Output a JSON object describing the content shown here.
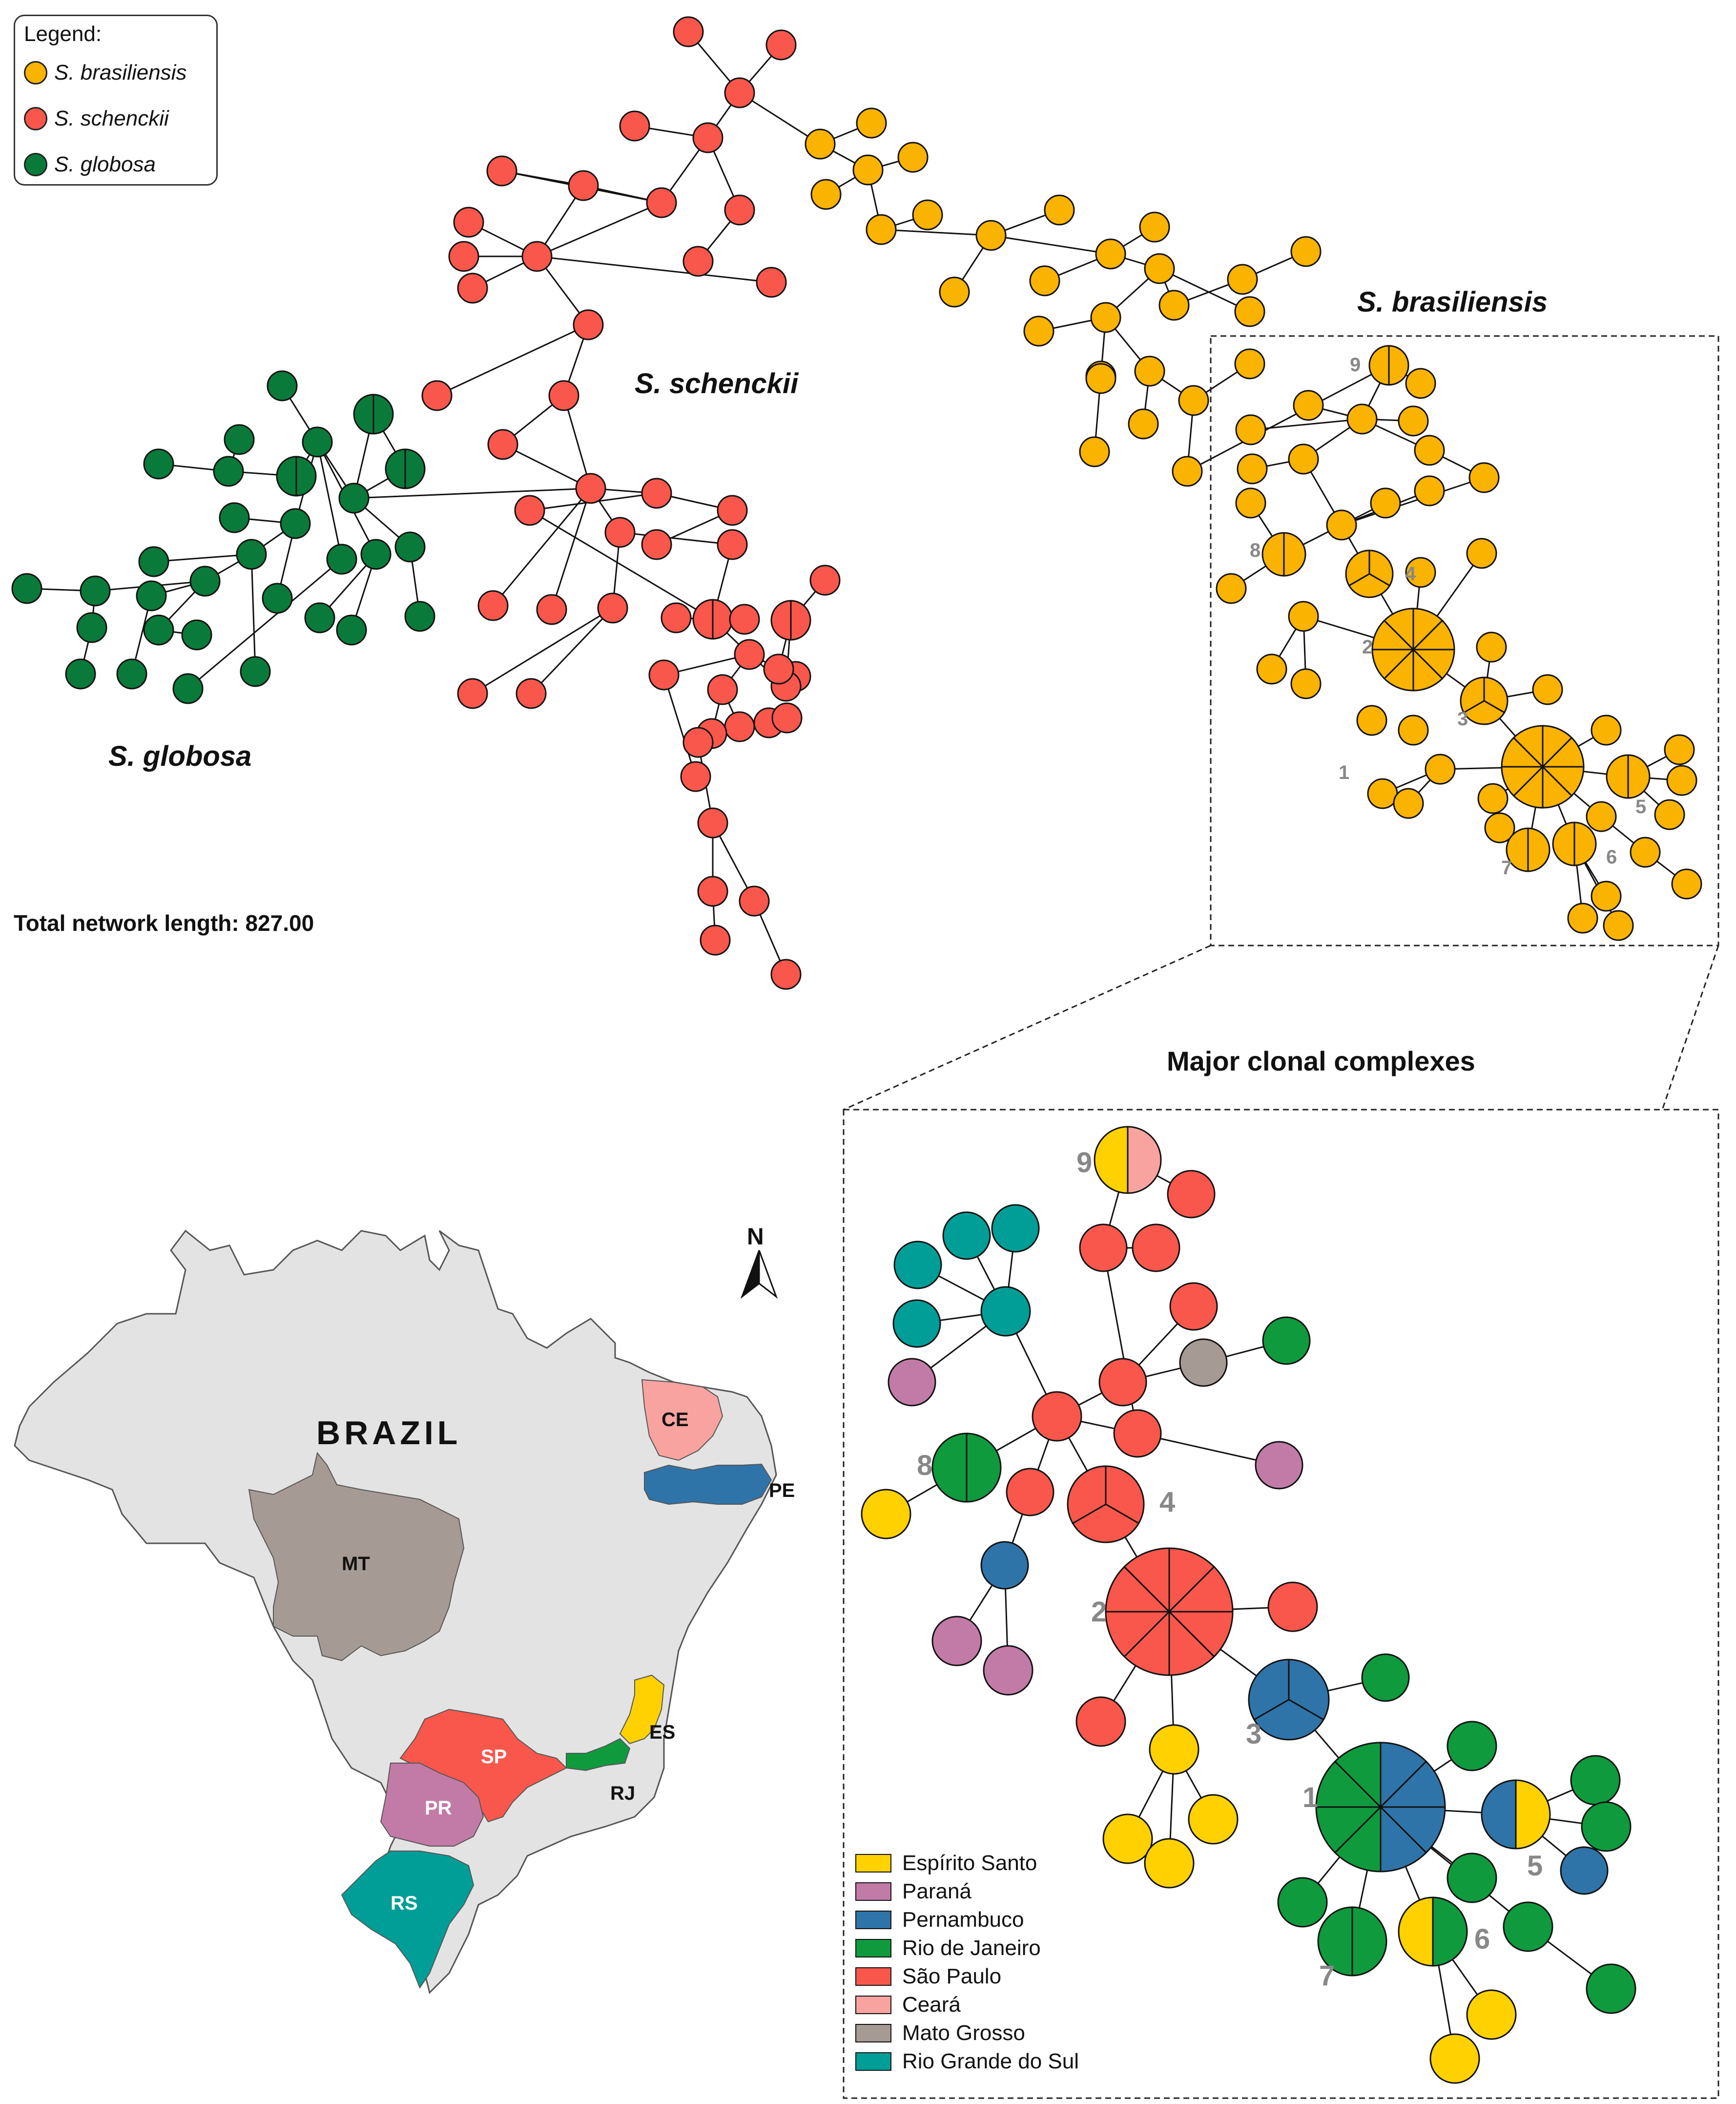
{
  "legend": {
    "title": "Legend:",
    "species": [
      {
        "name": "S. brasiliensis",
        "color": "#f9b300"
      },
      {
        "name": "S. schenckii",
        "color": "#f9574c"
      },
      {
        "name": "S. globosa",
        "color": "#0a7a3a"
      }
    ]
  },
  "labels": {
    "brasiliensis": "S. brasiliensis",
    "schenckii": "S. schenckii",
    "globosa": "S. globosa",
    "total_length": "Total network length: 827.00",
    "major_complexes": "Major clonal complexes",
    "north": "N",
    "country": "BRAZIL"
  },
  "map_states": [
    {
      "code": "CE",
      "name": "Ceará",
      "color": "#f8a3a0"
    },
    {
      "code": "PE",
      "name": "Pernambuco",
      "color": "#2f74a8"
    },
    {
      "code": "MT",
      "name": "Mato Grosso",
      "color": "#a69a94"
    },
    {
      "code": "ES",
      "name": "Espírito Santo",
      "color": "#ffd100"
    },
    {
      "code": "RJ",
      "name": "Rio de Janeiro",
      "color": "#0f9a3e"
    },
    {
      "code": "SP",
      "name": "São Paulo",
      "color": "#f9574c"
    },
    {
      "code": "PR",
      "name": "Paraná",
      "color": "#c27ba7"
    },
    {
      "code": "RS",
      "name": "Rio Grande do Sul",
      "color": "#009e96"
    }
  ],
  "state_legend": [
    {
      "name": "Espírito Santo",
      "color": "#ffd100"
    },
    {
      "name": "Paraná",
      "color": "#c27ba7"
    },
    {
      "name": "Pernambuco",
      "color": "#2f74a8"
    },
    {
      "name": "Rio de Janeiro",
      "color": "#0f9a3e"
    },
    {
      "name": "São Paulo",
      "color": "#f9574c"
    },
    {
      "name": "Ceará",
      "color": "#f8a3a0"
    },
    {
      "name": "Mato Grosso",
      "color": "#a69a94"
    },
    {
      "name": "Rio Grande do Sul",
      "color": "#009e96"
    }
  ],
  "complex_numbers": [
    "1",
    "2",
    "3",
    "4",
    "5",
    "6",
    "7",
    "8",
    "9"
  ]
}
